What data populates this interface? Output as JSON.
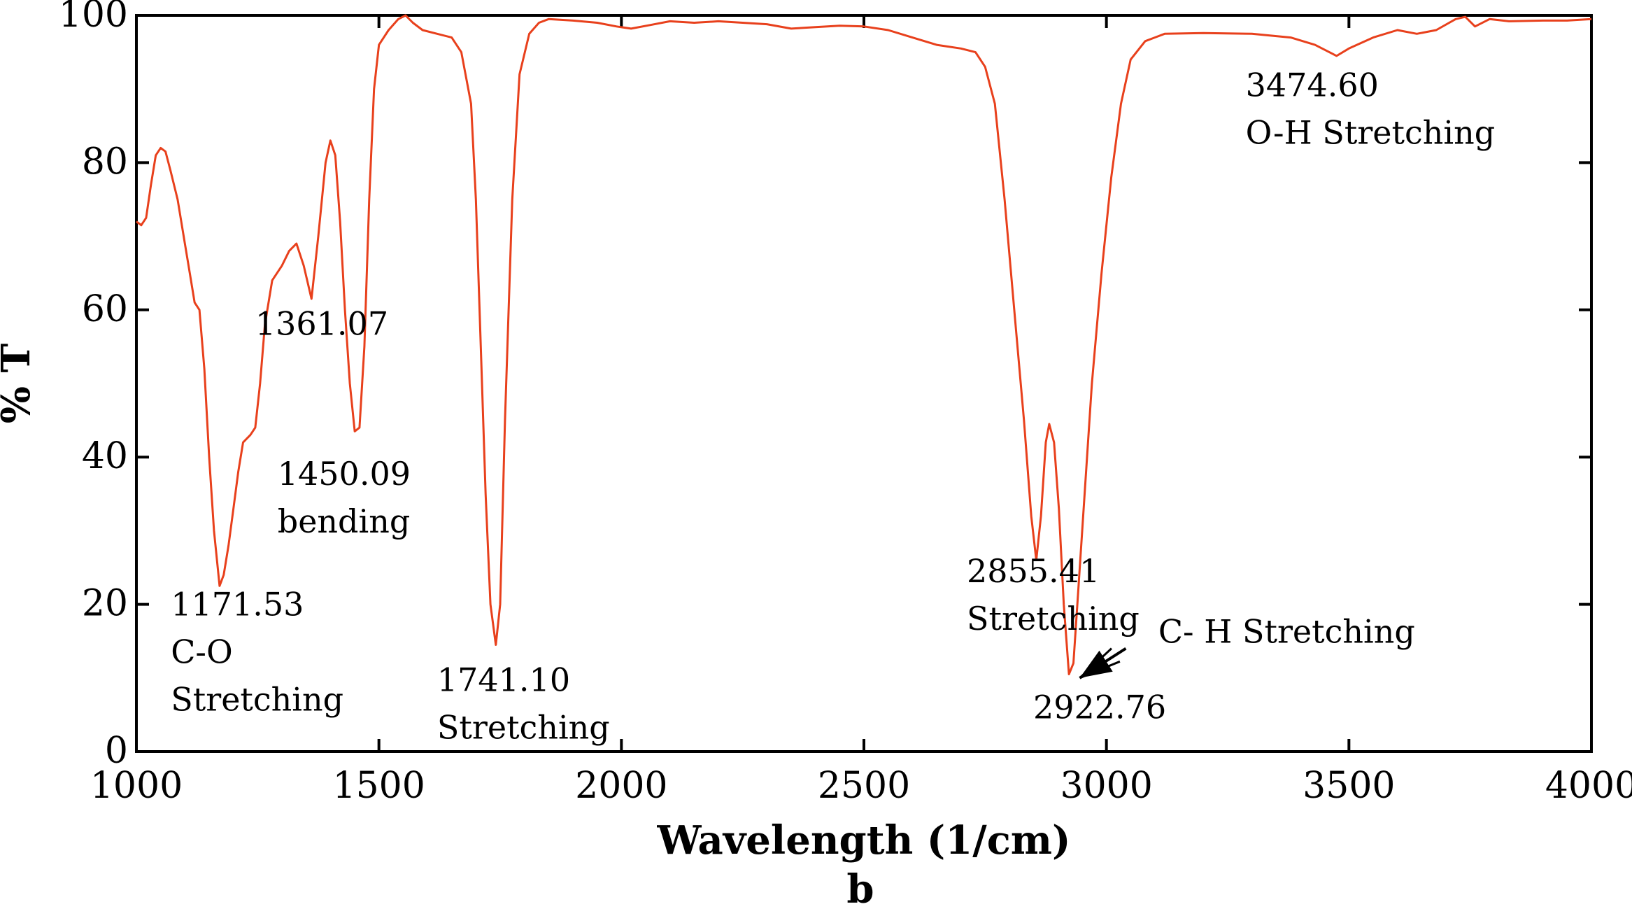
{
  "chart_data": {
    "type": "line",
    "title": "",
    "xlabel": "Wavelength (1/cm)",
    "ylabel": "% T",
    "panel_label": "b",
    "xlim": [
      1000,
      4000
    ],
    "ylim": [
      0,
      100
    ],
    "xticks": [
      1000,
      1500,
      2000,
      2500,
      3000,
      3500,
      4000
    ],
    "yticks": [
      0,
      20,
      40,
      60,
      80,
      100
    ],
    "grid": false,
    "legend": "none",
    "series": [
      {
        "color": "#e8401c",
        "points": [
          [
            1000,
            72
          ],
          [
            1010,
            71.5
          ],
          [
            1020,
            72.5
          ],
          [
            1030,
            77
          ],
          [
            1040,
            81
          ],
          [
            1050,
            82
          ],
          [
            1060,
            81.5
          ],
          [
            1070,
            79
          ],
          [
            1085,
            75
          ],
          [
            1100,
            69
          ],
          [
            1110,
            65
          ],
          [
            1120,
            61
          ],
          [
            1130,
            60
          ],
          [
            1140,
            52
          ],
          [
            1150,
            40
          ],
          [
            1160,
            30
          ],
          [
            1171.53,
            22.5
          ],
          [
            1180,
            24
          ],
          [
            1190,
            28
          ],
          [
            1200,
            33
          ],
          [
            1210,
            38
          ],
          [
            1220,
            42
          ],
          [
            1235,
            43
          ],
          [
            1245,
            44
          ],
          [
            1255,
            50
          ],
          [
            1265,
            58
          ],
          [
            1280,
            64
          ],
          [
            1300,
            66
          ],
          [
            1315,
            68
          ],
          [
            1330,
            69
          ],
          [
            1345,
            66
          ],
          [
            1361.07,
            61.5
          ],
          [
            1375,
            70
          ],
          [
            1390,
            80
          ],
          [
            1400,
            83
          ],
          [
            1410,
            81
          ],
          [
            1420,
            72
          ],
          [
            1430,
            60
          ],
          [
            1440,
            50
          ],
          [
            1450.09,
            43.5
          ],
          [
            1460,
            44
          ],
          [
            1470,
            55
          ],
          [
            1480,
            75
          ],
          [
            1490,
            90
          ],
          [
            1500,
            96
          ],
          [
            1520,
            98
          ],
          [
            1540,
            99.5
          ],
          [
            1555,
            100
          ],
          [
            1570,
            99
          ],
          [
            1590,
            98
          ],
          [
            1620,
            97.5
          ],
          [
            1650,
            97
          ],
          [
            1670,
            95
          ],
          [
            1690,
            88
          ],
          [
            1700,
            75
          ],
          [
            1710,
            55
          ],
          [
            1720,
            35
          ],
          [
            1730,
            20
          ],
          [
            1741.1,
            14.5
          ],
          [
            1750,
            20
          ],
          [
            1760,
            45
          ],
          [
            1775,
            75
          ],
          [
            1790,
            92
          ],
          [
            1810,
            97.5
          ],
          [
            1830,
            99
          ],
          [
            1850,
            99.5
          ],
          [
            1900,
            99.3
          ],
          [
            1950,
            99
          ],
          [
            1990,
            98.5
          ],
          [
            2020,
            98.2
          ],
          [
            2060,
            98.7
          ],
          [
            2100,
            99.2
          ],
          [
            2150,
            99
          ],
          [
            2200,
            99.2
          ],
          [
            2250,
            99
          ],
          [
            2300,
            98.8
          ],
          [
            2350,
            98.2
          ],
          [
            2400,
            98.4
          ],
          [
            2450,
            98.6
          ],
          [
            2500,
            98.5
          ],
          [
            2550,
            98
          ],
          [
            2600,
            97
          ],
          [
            2650,
            96
          ],
          [
            2700,
            95.5
          ],
          [
            2730,
            95
          ],
          [
            2750,
            93
          ],
          [
            2770,
            88
          ],
          [
            2790,
            75
          ],
          [
            2810,
            60
          ],
          [
            2830,
            45
          ],
          [
            2845,
            32
          ],
          [
            2855.41,
            26
          ],
          [
            2865,
            32
          ],
          [
            2875,
            42
          ],
          [
            2882,
            44.5
          ],
          [
            2892,
            42
          ],
          [
            2902,
            33
          ],
          [
            2912,
            20
          ],
          [
            2922.76,
            10.5
          ],
          [
            2932,
            12
          ],
          [
            2942,
            22
          ],
          [
            2955,
            35
          ],
          [
            2970,
            50
          ],
          [
            2990,
            65
          ],
          [
            3010,
            78
          ],
          [
            3030,
            88
          ],
          [
            3050,
            94
          ],
          [
            3080,
            96.5
          ],
          [
            3120,
            97.5
          ],
          [
            3200,
            97.6
          ],
          [
            3300,
            97.5
          ],
          [
            3380,
            97
          ],
          [
            3430,
            96
          ],
          [
            3474.6,
            94.5
          ],
          [
            3500,
            95.5
          ],
          [
            3550,
            97
          ],
          [
            3600,
            98
          ],
          [
            3640,
            97.5
          ],
          [
            3680,
            98
          ],
          [
            3720,
            99.5
          ],
          [
            3740,
            99.8
          ],
          [
            3760,
            98.5
          ],
          [
            3790,
            99.5
          ],
          [
            3830,
            99.2
          ],
          [
            3900,
            99.3
          ],
          [
            3950,
            99.3
          ],
          [
            4000,
            99.5
          ]
        ]
      }
    ],
    "annotations": [
      {
        "lines": [
          "1171.53",
          "C-O",
          "Stretching"
        ],
        "x": 1071,
        "y": 18.5
      },
      {
        "lines": [
          "1361.07"
        ],
        "x": 1245,
        "y": 56.6
      },
      {
        "lines": [
          "1450.09",
          "bending"
        ],
        "x": 1291,
        "y": 36.2
      },
      {
        "lines": [
          "1741.10",
          "Stretching"
        ],
        "x": 1620,
        "y": 8.2
      },
      {
        "lines": [
          "2855.41",
          "Stretching"
        ],
        "x": 2712,
        "y": 23.0
      },
      {
        "lines": [
          "C- H  Stretching"
        ],
        "x": 3107,
        "y": 14.8
      },
      {
        "lines": [
          "2922.76"
        ],
        "x": 2849,
        "y": 4.5
      },
      {
        "lines": [
          "3474.60",
          "O-H Stretching"
        ],
        "x": 3287,
        "y": 89.0
      }
    ],
    "arrow": {
      "from": [
        3040,
        14
      ],
      "to": [
        2945,
        10
      ]
    }
  }
}
